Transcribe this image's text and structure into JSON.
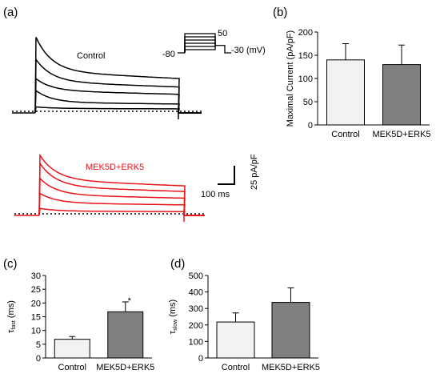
{
  "chart_data": [
    {
      "panel": "(a)",
      "type": "line",
      "recordings": [
        {
          "name": "Control",
          "color": "#000000",
          "steady_amplitudes": [
            2,
            6,
            14,
            20,
            27
          ],
          "peak_amplitudes": [
            3,
            14,
            22,
            35,
            50
          ],
          "baseline_dotted": true
        },
        {
          "name": "MEK5D+ERK5",
          "color": "#e8141a",
          "steady_amplitudes": [
            2,
            8,
            14,
            20,
            25
          ],
          "peak_amplitudes": [
            4,
            15,
            26,
            37,
            43
          ],
          "baseline_dotted": true
        }
      ],
      "protocol": {
        "labels": [
          "-80",
          "50",
          "-30 (mV)"
        ],
        "holding_mV": -80,
        "max_step_mV": 50,
        "tail_mV": -30
      },
      "scale_bar": {
        "vertical_label": "25 pA/pF",
        "horizontal_label": "100 ms"
      }
    },
    {
      "panel": "(b)",
      "type": "bar",
      "categories": [
        "Control",
        "MEK5D+ERK5"
      ],
      "values": [
        140,
        130
      ],
      "errors": [
        35,
        42
      ],
      "bar_colors": [
        "#f2f2f2",
        "#808080"
      ],
      "ylabel": "Maximal Current (pA/pF)",
      "ylim": [
        0,
        200
      ],
      "yticks": [
        "0",
        "50",
        "100",
        "150",
        "200"
      ],
      "significance": [
        "",
        ""
      ]
    },
    {
      "panel": "(c)",
      "type": "bar",
      "categories": [
        "Control",
        "MEK5D+ERK5"
      ],
      "values": [
        6.8,
        16.8
      ],
      "errors": [
        1.0,
        3.6
      ],
      "bar_colors": [
        "#f2f2f2",
        "#808080"
      ],
      "ylabel_main": "τ",
      "ylabel_sub": "fast",
      "ylabel_unit": " (ms)",
      "ylim": [
        0,
        30
      ],
      "yticks": [
        "0",
        "5",
        "10",
        "15",
        "20",
        "25",
        "30"
      ],
      "significance": [
        "",
        "*"
      ]
    },
    {
      "panel": "(d)",
      "type": "bar",
      "categories": [
        "Control",
        "MEK5D+ERK5"
      ],
      "values": [
        218,
        337
      ],
      "errors": [
        55,
        88
      ],
      "bar_colors": [
        "#f2f2f2",
        "#808080"
      ],
      "ylabel_main": "τ",
      "ylabel_sub": "slow",
      "ylabel_unit": " (ms)",
      "ylim": [
        0,
        500
      ],
      "yticks": [
        "0",
        "100",
        "200",
        "300",
        "400",
        "500"
      ],
      "significance": [
        "",
        ""
      ]
    }
  ]
}
